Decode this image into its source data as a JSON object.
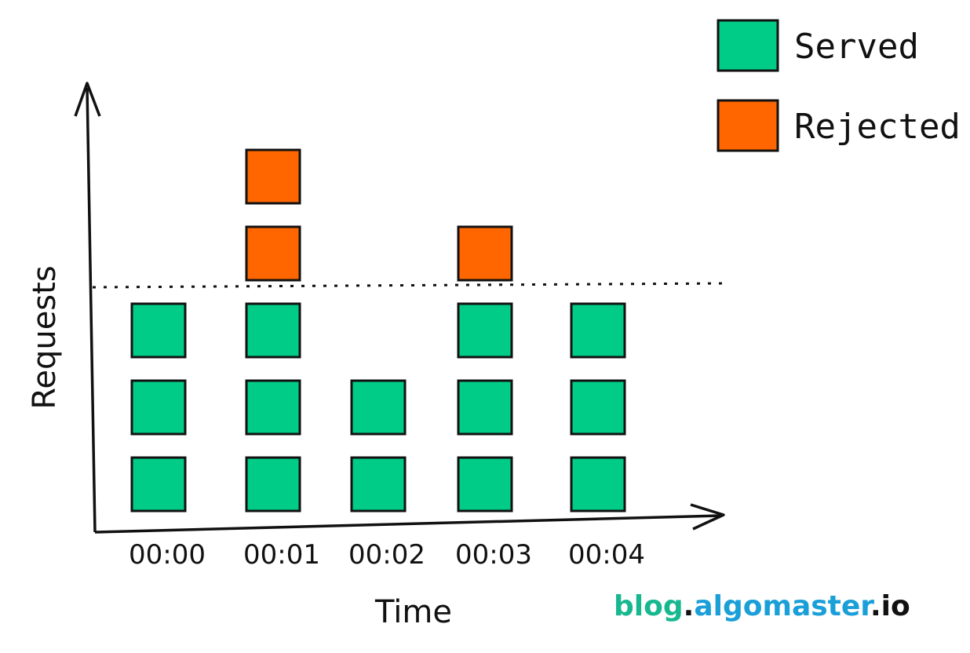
{
  "chart_data": {
    "type": "bar",
    "subtype": "stacked-unit-blocks",
    "categories": [
      "00:00",
      "00:01",
      "00:02",
      "00:03",
      "00:04"
    ],
    "series": [
      {
        "name": "Served",
        "values": [
          3,
          3,
          2,
          3,
          3
        ],
        "color": "#00cc88"
      },
      {
        "name": "Rejected",
        "values": [
          0,
          2,
          0,
          1,
          0
        ],
        "color": "#ff6600"
      }
    ],
    "limit": 3,
    "limit_line_style": "dotted",
    "xlabel": "Time",
    "ylabel": "Requests",
    "legend_position": "top-right",
    "grid": false
  },
  "watermark": {
    "part1": "blog",
    "part2": ".",
    "part3": "algomaster",
    "part4": ".io",
    "color1": "#17b890",
    "color2": "#111111",
    "color3": "#1a9fd8",
    "color4": "#111111"
  }
}
